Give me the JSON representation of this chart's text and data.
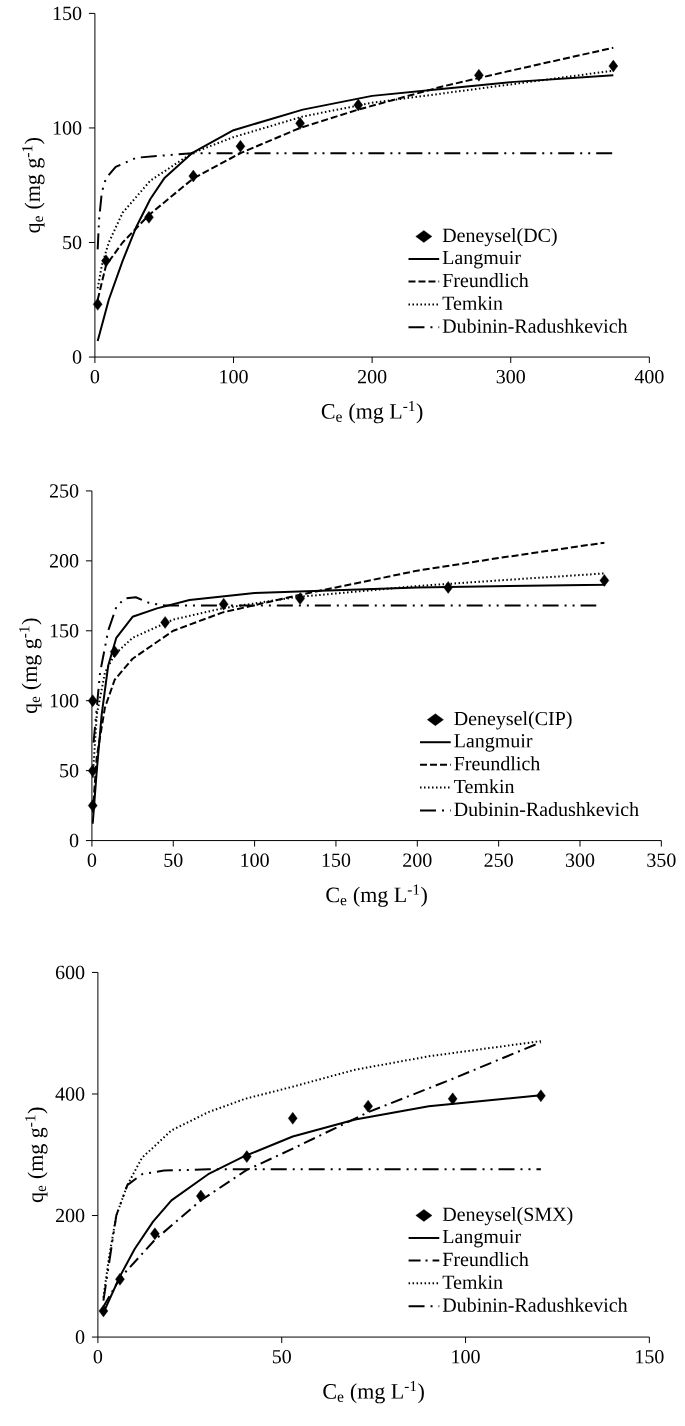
{
  "chart_data": [
    {
      "type": "line",
      "xlabel": "C$_{e}$ (mg L$^{-1}$)",
      "ylabel": "q$_{e}$ (mg g$^{-1}$)",
      "xlim": [
        0,
        400
      ],
      "ylim": [
        0,
        150
      ],
      "xticks": [
        0,
        100,
        200,
        300,
        400
      ],
      "yticks": [
        0,
        50,
        100,
        150
      ],
      "grid": false,
      "legend": "bottom right",
      "series": [
        {
          "name": "Deneysel(DC)",
          "type": "scatter",
          "marker": "diamond",
          "color": "#000000",
          "x": [
            2,
            8,
            39,
            71,
            105,
            148,
            190,
            277,
            374
          ],
          "values": [
            23,
            42,
            61,
            79,
            92,
            102,
            110,
            123,
            127
          ]
        },
        {
          "name": "Langmuir",
          "type": "line",
          "line_style": "solid",
          "marker": "none",
          "color": "#000000",
          "x": [
            2,
            10,
            20,
            30,
            40,
            50,
            70,
            100,
            150,
            200,
            250,
            300,
            374
          ],
          "values": [
            7,
            25,
            42,
            57,
            69,
            78,
            89,
            99,
            108,
            114,
            117,
            120,
            123
          ]
        },
        {
          "name": "Freundlich",
          "type": "line",
          "line_style": "dashed",
          "marker": "none",
          "color": "#000000",
          "x": [
            2,
            8,
            20,
            39,
            71,
            105,
            148,
            190,
            250,
            300,
            374
          ],
          "values": [
            25,
            40,
            50,
            62,
            78,
            89,
            100,
            108,
            118,
            125,
            135
          ]
        },
        {
          "name": "Temkin",
          "type": "line",
          "line_style": "dotted",
          "marker": "none",
          "color": "#000000",
          "x": [
            2,
            5,
            10,
            20,
            40,
            70,
            100,
            150,
            200,
            250,
            300,
            374
          ],
          "values": [
            30,
            40,
            50,
            63,
            77,
            89,
            96,
            105,
            111,
            115,
            119,
            125
          ]
        },
        {
          "name": "Dubinin-Radushkevich",
          "type": "line",
          "line_style": "dashdotdot",
          "marker": "none",
          "color": "#000000",
          "x": [
            2,
            3,
            5,
            8,
            15,
            30,
            50,
            70,
            374
          ],
          "values": [
            47,
            60,
            72,
            78,
            83,
            87,
            88,
            89,
            89
          ]
        }
      ]
    },
    {
      "type": "line",
      "xlabel": "C$_{e}$ (mg L$^{-1}$)",
      "ylabel": "q$_{e}$ (mg g$^{-1}$)",
      "xlim": [
        0,
        350
      ],
      "ylim": [
        0,
        250
      ],
      "xticks": [
        0,
        50,
        100,
        150,
        200,
        250,
        300,
        350
      ],
      "yticks": [
        0,
        50,
        100,
        150,
        200,
        250
      ],
      "grid": false,
      "legend": "bottom right",
      "series": [
        {
          "name": "Deneysel(CIP)",
          "type": "scatter",
          "marker": "diamond",
          "color": "#000000",
          "x": [
            0.5,
            0.5,
            0.5,
            14,
            45,
            81,
            128,
            219,
            315
          ],
          "values": [
            25,
            50,
            100,
            135,
            156,
            169,
            173,
            181,
            186
          ]
        },
        {
          "name": "Langmuir",
          "type": "line",
          "line_style": "solid",
          "marker": "none",
          "color": "#000000",
          "x": [
            0.5,
            3,
            6,
            10,
            15,
            25,
            40,
            60,
            100,
            150,
            200,
            315
          ],
          "values": [
            12,
            50,
            90,
            125,
            145,
            160,
            166,
            172,
            177,
            179,
            181,
            183
          ]
        },
        {
          "name": "Freundlich",
          "type": "line",
          "line_style": "dashed",
          "marker": "none",
          "color": "#000000",
          "x": [
            0.5,
            3,
            8,
            14,
            25,
            50,
            80,
            125,
            150,
            200,
            250,
            315
          ],
          "values": [
            20,
            60,
            95,
            115,
            130,
            150,
            163,
            175,
            181,
            193,
            202,
            213
          ]
        },
        {
          "name": "Temkin",
          "type": "line",
          "line_style": "dotted",
          "marker": "none",
          "color": "#000000",
          "x": [
            0.5,
            3,
            8,
            14,
            25,
            50,
            80,
            125,
            200,
            250,
            315
          ],
          "values": [
            45,
            90,
            120,
            133,
            145,
            158,
            166,
            174,
            182,
            186,
            191
          ]
        },
        {
          "name": "Dubinin-Radushkevich",
          "type": "line",
          "line_style": "dashdotdot",
          "marker": "none",
          "color": "#000000",
          "x": [
            1,
            5,
            10,
            15,
            20,
            27,
            35,
            45,
            100,
            310
          ],
          "values": [
            70,
            120,
            150,
            167,
            173,
            174,
            170,
            168,
            168,
            168
          ]
        }
      ]
    },
    {
      "type": "line",
      "xlabel": "C$_{e}$ (mg L$^{-1}$)",
      "ylabel": "q$_{e}$ (mg g$^{-1}$)",
      "xlim": [
        0,
        150
      ],
      "ylim": [
        0,
        600
      ],
      "xticks": [
        0,
        50,
        100,
        150
      ],
      "yticks": [
        0,
        200,
        400,
        600
      ],
      "grid": false,
      "legend": "bottom right",
      "series": [
        {
          "name": "Deneysel(SMX)",
          "type": "scatter",
          "marker": "diamond",
          "color": "#000000",
          "x": [
            1.5,
            6,
            15.5,
            28,
            40.5,
            53,
            73.5,
            96.5,
            120.5
          ],
          "values": [
            43,
            95,
            170,
            232,
            297,
            360,
            380,
            392,
            397
          ]
        },
        {
          "name": "Langmuir",
          "type": "line",
          "line_style": "solid",
          "marker": "none",
          "color": "#000000",
          "x": [
            1.5,
            3,
            6,
            10,
            15,
            20,
            30,
            40,
            53,
            70,
            90,
            120.5
          ],
          "values": [
            40,
            60,
            100,
            145,
            190,
            225,
            268,
            298,
            330,
            358,
            380,
            398
          ]
        },
        {
          "name": "Freundlich",
          "type": "line",
          "line_style": "dashdot",
          "marker": "none",
          "color": "#000000",
          "x": [
            1.5,
            6,
            15.5,
            28,
            40.5,
            53,
            73.5,
            96.5,
            120.5
          ],
          "values": [
            50,
            97,
            160,
            225,
            275,
            310,
            370,
            425,
            485
          ]
        },
        {
          "name": "Temkin",
          "type": "line",
          "line_style": "dotted",
          "marker": "none",
          "color": "#000000",
          "x": [
            1.5,
            3,
            5,
            8,
            12,
            20,
            30,
            40,
            53,
            70,
            90,
            120.5
          ],
          "values": [
            65,
            130,
            200,
            250,
            295,
            340,
            370,
            392,
            412,
            440,
            462,
            487
          ]
        },
        {
          "name": "Dubinin-Radushkevich",
          "type": "line",
          "line_style": "dashdotdot",
          "marker": "none",
          "color": "#000000",
          "x": [
            1.5,
            3,
            5,
            8,
            12,
            18,
            30,
            120.5
          ],
          "values": [
            60,
            120,
            200,
            250,
            268,
            274,
            276,
            276
          ]
        }
      ]
    }
  ]
}
